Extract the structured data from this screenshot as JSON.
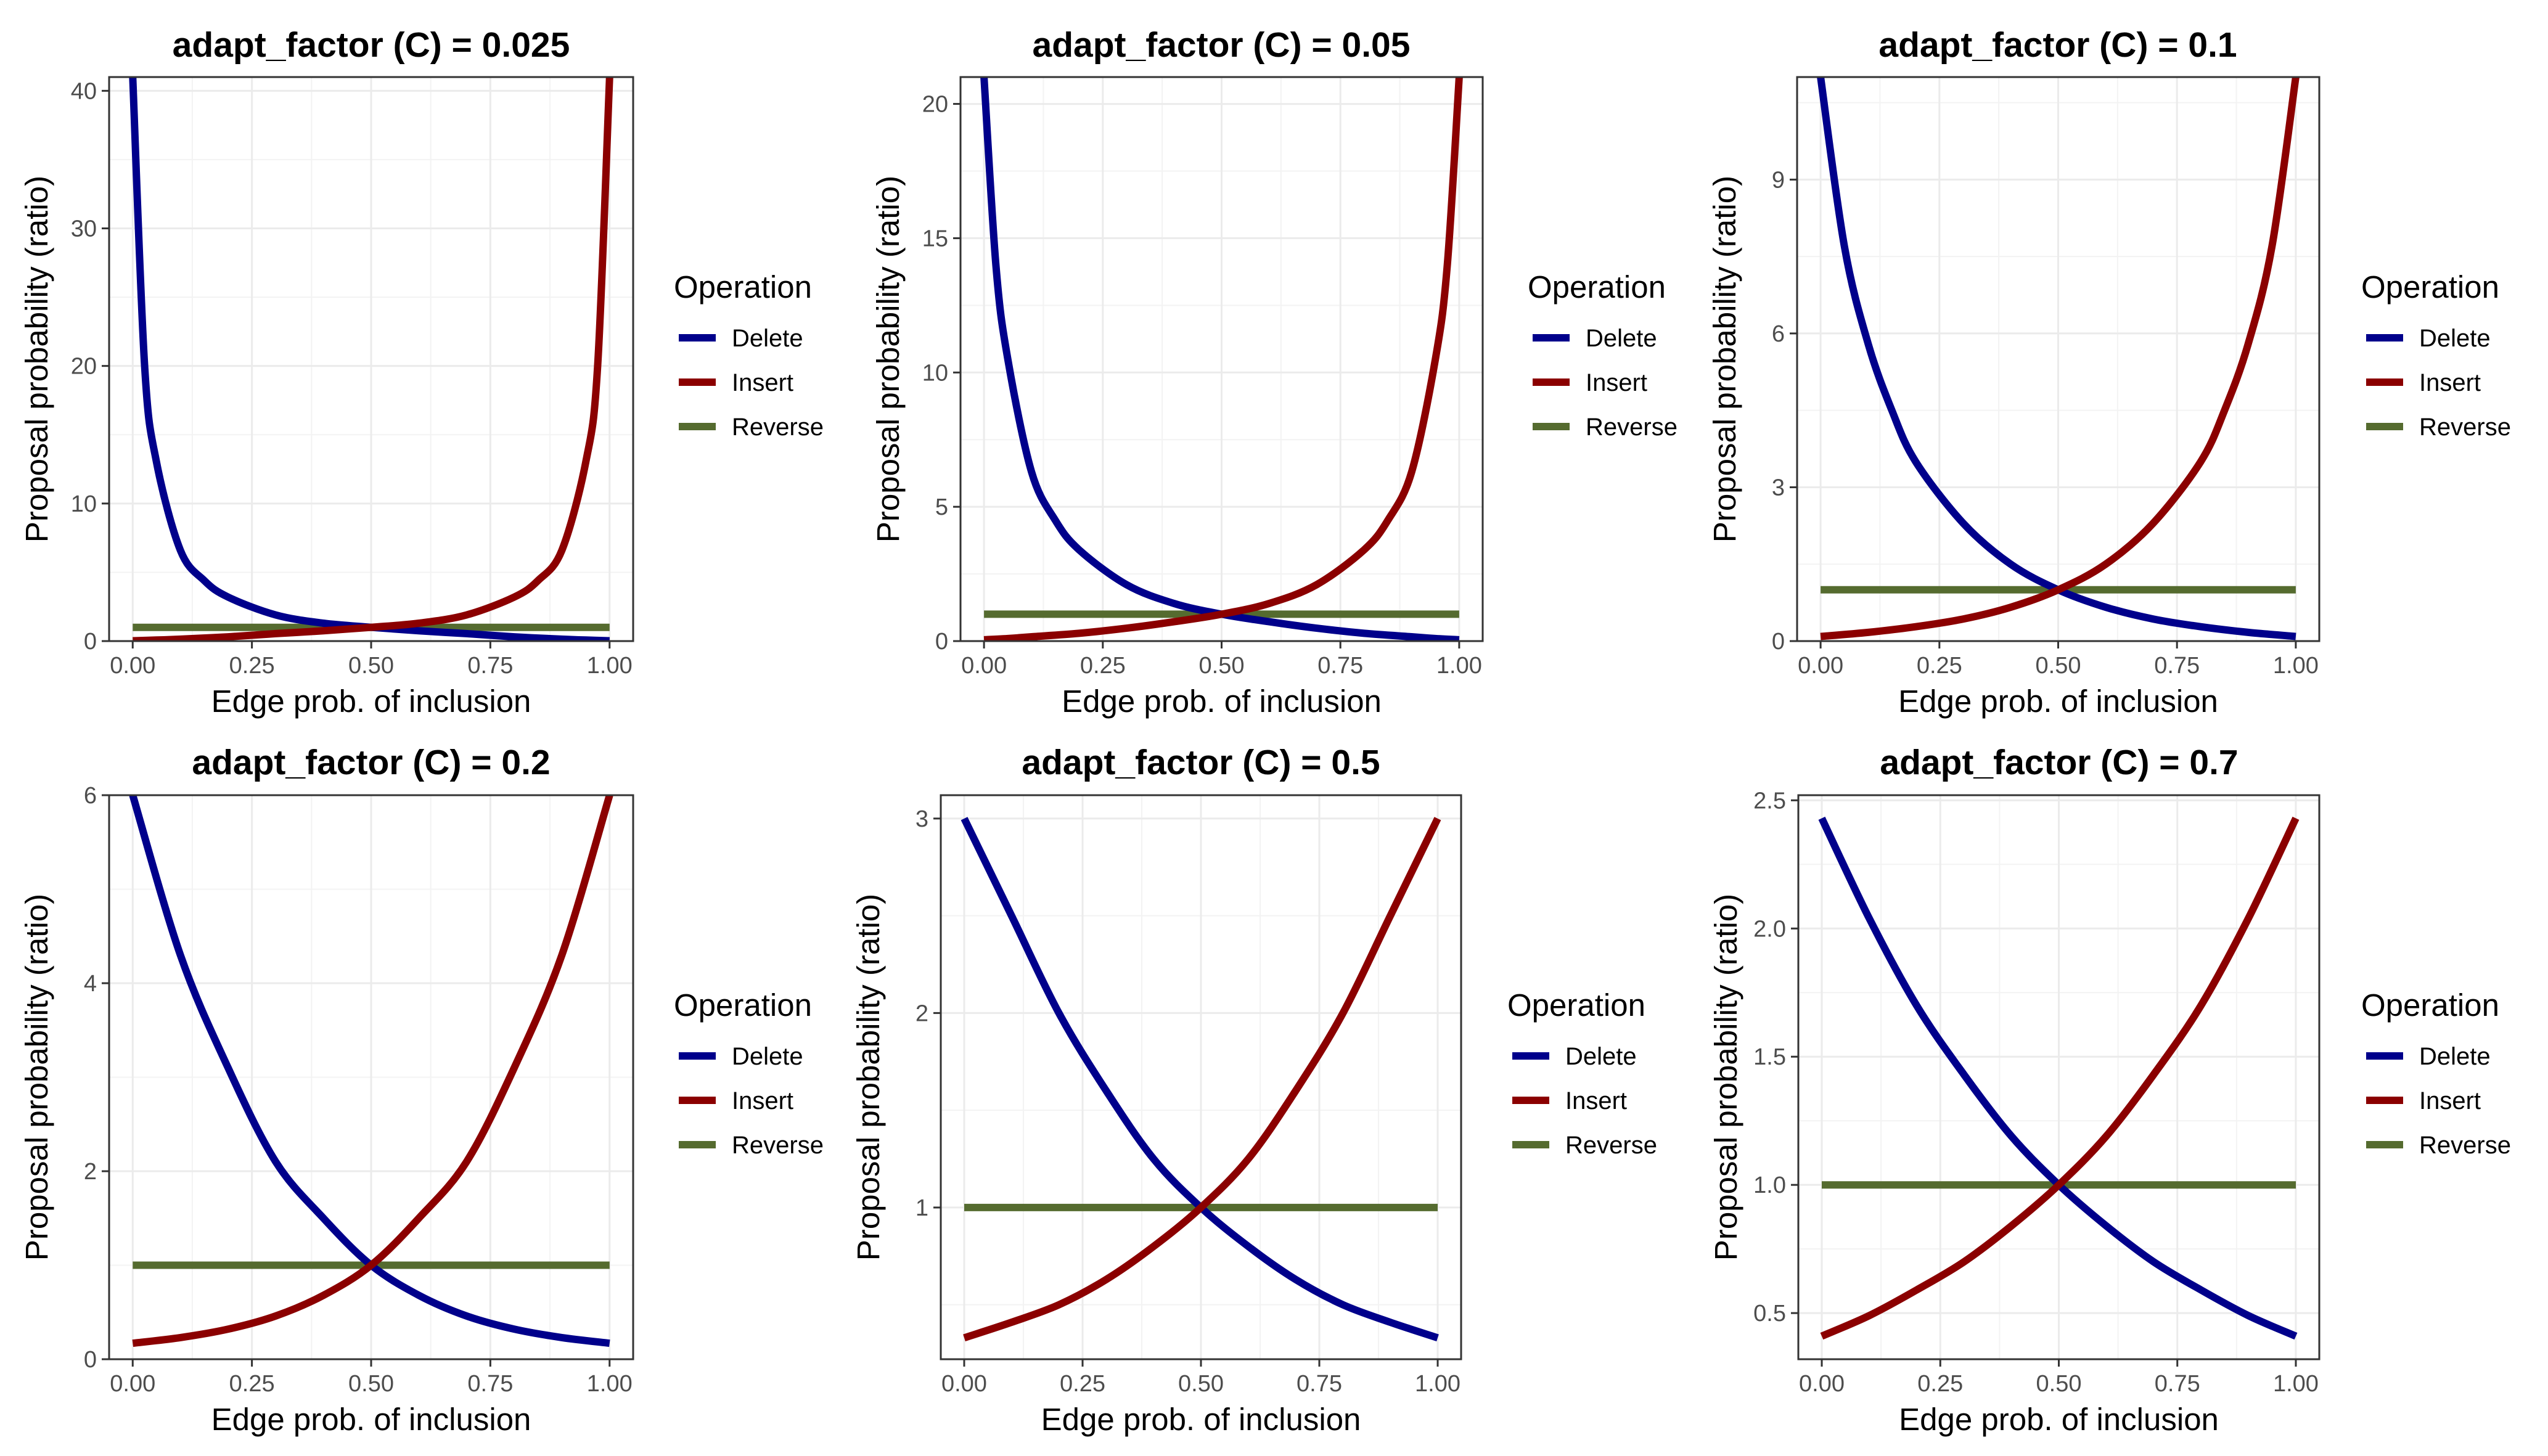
{
  "figure": {
    "legend_title": "Operation",
    "colors": {
      "Delete": "#00008B",
      "Insert": "#8B0000",
      "Reverse": "#556B2F"
    }
  },
  "chart_data": [
    {
      "type": "line",
      "title": "adapt_factor (C) = 0.025",
      "xlabel": "Edge prob. of inclusion",
      "ylabel": "Proposal probability (ratio)",
      "C": 0.025,
      "xlim": [
        0,
        1
      ],
      "ylim": [
        0,
        41
      ],
      "x_ticks": [
        0,
        0.25,
        0.5,
        0.75,
        1
      ],
      "x_tick_labels": [
        "0.00",
        "0.25",
        "0.50",
        "0.75",
        "1.00"
      ],
      "y_ticks": [
        0,
        10,
        20,
        30,
        40
      ],
      "y_tick_labels": [
        "0",
        "10",
        "20",
        "30",
        "40"
      ],
      "legend": "right",
      "grid": true,
      "series": [
        {
          "name": "Delete",
          "x": [
            0,
            0.025,
            0.05,
            0.1,
            0.15,
            0.2,
            0.3,
            0.4,
            0.5,
            0.6,
            0.7,
            0.8,
            0.9,
            0.95,
            1
          ],
          "y": [
            41,
            20,
            13,
            6.6,
            4.4,
            3.2,
            1.9,
            1.3,
            1,
            0.75,
            0.54,
            0.31,
            0.14,
            0.075,
            0.024
          ]
        },
        {
          "name": "Insert",
          "x": [
            0,
            0.05,
            0.1,
            0.2,
            0.3,
            0.4,
            0.5,
            0.6,
            0.7,
            0.8,
            0.85,
            0.9,
            0.95,
            0.975,
            1
          ],
          "y": [
            0.024,
            0.075,
            0.14,
            0.31,
            0.54,
            0.75,
            1,
            1.3,
            1.9,
            3.2,
            4.4,
            6.6,
            13,
            20,
            41
          ]
        },
        {
          "name": "Reverse",
          "x": [
            0,
            1
          ],
          "y": [
            1,
            1
          ]
        }
      ]
    },
    {
      "type": "line",
      "title": "adapt_factor (C) = 0.05",
      "xlabel": "Edge prob. of inclusion",
      "ylabel": "Proposal probability (ratio)",
      "C": 0.05,
      "xlim": [
        0,
        1
      ],
      "ylim": [
        0,
        21
      ],
      "x_ticks": [
        0,
        0.25,
        0.5,
        0.75,
        1
      ],
      "x_tick_labels": [
        "0.00",
        "0.25",
        "0.50",
        "0.75",
        "1.00"
      ],
      "y_ticks": [
        0,
        5,
        10,
        15,
        20
      ],
      "y_tick_labels": [
        "0",
        "5",
        "10",
        "15",
        "20"
      ],
      "legend": "right",
      "grid": true,
      "series": [
        {
          "name": "Delete",
          "x": [
            0,
            0.025,
            0.05,
            0.1,
            0.15,
            0.2,
            0.3,
            0.4,
            0.5,
            0.6,
            0.7,
            0.8,
            0.9,
            0.95,
            1
          ],
          "y": [
            21,
            14,
            10.5,
            6.3,
            4.5,
            3.4,
            2.1,
            1.4,
            1,
            0.72,
            0.48,
            0.29,
            0.16,
            0.095,
            0.048
          ]
        },
        {
          "name": "Insert",
          "x": [
            0,
            0.05,
            0.1,
            0.2,
            0.3,
            0.4,
            0.5,
            0.6,
            0.7,
            0.8,
            0.85,
            0.9,
            0.95,
            0.975,
            1
          ],
          "y": [
            0.048,
            0.095,
            0.16,
            0.29,
            0.48,
            0.72,
            1,
            1.4,
            2.1,
            3.4,
            4.5,
            6.3,
            10.5,
            14,
            21
          ]
        },
        {
          "name": "Reverse",
          "x": [
            0,
            1
          ],
          "y": [
            1,
            1
          ]
        }
      ]
    },
    {
      "type": "line",
      "title": "adapt_factor (C) = 0.1",
      "xlabel": "Edge prob. of inclusion",
      "ylabel": "Proposal probability (ratio)",
      "C": 0.1,
      "xlim": [
        0,
        1
      ],
      "ylim": [
        0,
        11
      ],
      "x_ticks": [
        0,
        0.25,
        0.5,
        0.75,
        1
      ],
      "x_tick_labels": [
        "0.00",
        "0.25",
        "0.50",
        "0.75",
        "1.00"
      ],
      "y_ticks": [
        0,
        3,
        6,
        9
      ],
      "y_tick_labels": [
        "0",
        "3",
        "6",
        "9"
      ],
      "legend": "right",
      "grid": true,
      "series": [
        {
          "name": "Delete",
          "x": [
            0,
            0.05,
            0.1,
            0.15,
            0.2,
            0.3,
            0.4,
            0.5,
            0.6,
            0.7,
            0.8,
            0.9,
            1
          ],
          "y": [
            11,
            7.7,
            5.8,
            4.5,
            3.5,
            2.3,
            1.5,
            1,
            0.66,
            0.43,
            0.28,
            0.17,
            0.09
          ]
        },
        {
          "name": "Insert",
          "x": [
            0,
            0.1,
            0.2,
            0.3,
            0.4,
            0.5,
            0.6,
            0.7,
            0.8,
            0.85,
            0.9,
            0.95,
            1
          ],
          "y": [
            0.09,
            0.17,
            0.28,
            0.43,
            0.66,
            1,
            1.5,
            2.3,
            3.5,
            4.5,
            5.8,
            7.7,
            11
          ]
        },
        {
          "name": "Reverse",
          "x": [
            0,
            1
          ],
          "y": [
            1,
            1
          ]
        }
      ]
    },
    {
      "type": "line",
      "title": "adapt_factor (C) = 0.2",
      "xlabel": "Edge prob. of inclusion",
      "ylabel": "Proposal probability (ratio)",
      "C": 0.2,
      "xlim": [
        0,
        1
      ],
      "ylim": [
        0,
        6
      ],
      "x_ticks": [
        0,
        0.25,
        0.5,
        0.75,
        1
      ],
      "x_tick_labels": [
        "0.00",
        "0.25",
        "0.50",
        "0.75",
        "1.00"
      ],
      "y_ticks": [
        0,
        2,
        4,
        6
      ],
      "y_tick_labels": [
        "0",
        "2",
        "4",
        "6"
      ],
      "legend": "right",
      "grid": true,
      "series": [
        {
          "name": "Delete",
          "x": [
            0,
            0.1,
            0.2,
            0.3,
            0.4,
            0.5,
            0.6,
            0.7,
            0.8,
            0.9,
            1
          ],
          "y": [
            6,
            4.3,
            3.1,
            2.1,
            1.5,
            1,
            0.68,
            0.46,
            0.32,
            0.23,
            0.17
          ]
        },
        {
          "name": "Insert",
          "x": [
            0,
            0.1,
            0.2,
            0.3,
            0.4,
            0.5,
            0.6,
            0.7,
            0.8,
            0.9,
            1
          ],
          "y": [
            0.17,
            0.23,
            0.32,
            0.46,
            0.68,
            1,
            1.5,
            2.1,
            3.1,
            4.3,
            6
          ]
        },
        {
          "name": "Reverse",
          "x": [
            0,
            1
          ],
          "y": [
            1,
            1
          ]
        }
      ]
    },
    {
      "type": "line",
      "title": "adapt_factor (C) = 0.5",
      "xlabel": "Edge prob. of inclusion",
      "ylabel": "Proposal probability (ratio)",
      "C": 0.5,
      "xlim": [
        0,
        1
      ],
      "ylim": [
        0.22,
        3.12
      ],
      "x_ticks": [
        0,
        0.25,
        0.5,
        0.75,
        1
      ],
      "x_tick_labels": [
        "0.00",
        "0.25",
        "0.50",
        "0.75",
        "1.00"
      ],
      "y_ticks": [
        1,
        2,
        3
      ],
      "y_tick_labels": [
        "1",
        "2",
        "3"
      ],
      "legend": "right",
      "grid": true,
      "series": [
        {
          "name": "Delete",
          "x": [
            0,
            0.1,
            0.2,
            0.3,
            0.4,
            0.5,
            0.6,
            0.7,
            0.8,
            0.9,
            1
          ],
          "y": [
            3,
            2.5,
            2,
            1.6,
            1.25,
            1,
            0.8,
            0.63,
            0.5,
            0.41,
            0.33
          ]
        },
        {
          "name": "Insert",
          "x": [
            0,
            0.1,
            0.2,
            0.3,
            0.4,
            0.5,
            0.6,
            0.7,
            0.8,
            0.9,
            1
          ],
          "y": [
            0.33,
            0.41,
            0.5,
            0.63,
            0.8,
            1,
            1.25,
            1.6,
            2,
            2.5,
            3
          ]
        },
        {
          "name": "Reverse",
          "x": [
            0,
            1
          ],
          "y": [
            1,
            1
          ]
        }
      ]
    },
    {
      "type": "line",
      "title": "adapt_factor (C) = 0.7",
      "xlabel": "Edge prob. of inclusion",
      "ylabel": "Proposal probability (ratio)",
      "C": 0.7,
      "xlim": [
        0,
        1
      ],
      "ylim": [
        0.32,
        2.52
      ],
      "x_ticks": [
        0,
        0.25,
        0.5,
        0.75,
        1
      ],
      "x_tick_labels": [
        "0.00",
        "0.25",
        "0.50",
        "0.75",
        "1.00"
      ],
      "y_ticks": [
        0.5,
        1,
        1.5,
        2,
        2.5
      ],
      "y_tick_labels": [
        "0.5",
        "1.0",
        "1.5",
        "2.0",
        "2.5"
      ],
      "legend": "right",
      "grid": true,
      "series": [
        {
          "name": "Delete",
          "x": [
            0,
            0.1,
            0.2,
            0.3,
            0.4,
            0.5,
            0.6,
            0.7,
            0.8,
            0.9,
            1
          ],
          "y": [
            2.43,
            2.04,
            1.7,
            1.43,
            1.19,
            1,
            0.84,
            0.7,
            0.59,
            0.49,
            0.41
          ]
        },
        {
          "name": "Insert",
          "x": [
            0,
            0.1,
            0.2,
            0.3,
            0.4,
            0.5,
            0.6,
            0.7,
            0.8,
            0.9,
            1
          ],
          "y": [
            0.41,
            0.49,
            0.59,
            0.7,
            0.84,
            1,
            1.19,
            1.43,
            1.7,
            2.04,
            2.43
          ]
        },
        {
          "name": "Reverse",
          "x": [
            0,
            1
          ],
          "y": [
            1,
            1
          ]
        }
      ]
    }
  ]
}
